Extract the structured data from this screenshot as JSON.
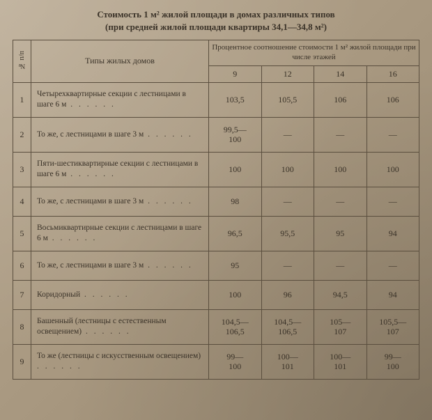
{
  "title_line1": "Стоимость 1 м² жилой площади в домах различных типов",
  "title_line2": "(при средней жилой площади квартиры 34,1—34,8 м²)",
  "header": {
    "row_no": "№ п/п",
    "type_col": "Типы жилых домов",
    "group": "Процентное соотношение стоимости 1 м² жилой площади при числе этажей",
    "floors": [
      "9",
      "12",
      "14",
      "16"
    ]
  },
  "rows": [
    {
      "n": "1",
      "type": "Четырехквартирные секции с лестницами в шаге 6 м",
      "vals": [
        "103,5",
        "105,5",
        "106",
        "106"
      ]
    },
    {
      "n": "2",
      "type": "То же, с лестницами в шаге 3 м",
      "vals": [
        "99,5—100",
        "—",
        "—",
        "—"
      ]
    },
    {
      "n": "3",
      "type": "Пяти-шестиквартирные секции с лестницами в шаге 6 м",
      "vals": [
        "100",
        "100",
        "100",
        "100"
      ]
    },
    {
      "n": "4",
      "type": "То же, с лестницами в шаге 3 м",
      "vals": [
        "98",
        "—",
        "—",
        "—"
      ]
    },
    {
      "n": "5",
      "type": "Восьмиквартирные секции с лестницами в шаге 6 м",
      "vals": [
        "96,5",
        "95,5",
        "95",
        "94"
      ]
    },
    {
      "n": "6",
      "type": "То же, с лестницами в шаге 3 м",
      "vals": [
        "95",
        "—",
        "—",
        "—"
      ]
    },
    {
      "n": "7",
      "type": "Коридорный",
      "vals": [
        "100",
        "96",
        "94,5",
        "94"
      ]
    },
    {
      "n": "8",
      "type": "Башенный (лестницы с естественным освещением)",
      "vals": [
        "104,5—106,5",
        "104,5—106,5",
        "105—107",
        "105,5—107"
      ]
    },
    {
      "n": "9",
      "type": "То же (лестницы с искусственным освещением)",
      "vals": [
        "99—100",
        "100—101",
        "100—101",
        "99—100"
      ]
    }
  ],
  "style": {
    "border_color": "#5a4e3e",
    "text_color": "#3a3228",
    "em_dash": "—",
    "leader": " . . . . . .",
    "short_rows": [
      3,
      5,
      6
    ]
  }
}
